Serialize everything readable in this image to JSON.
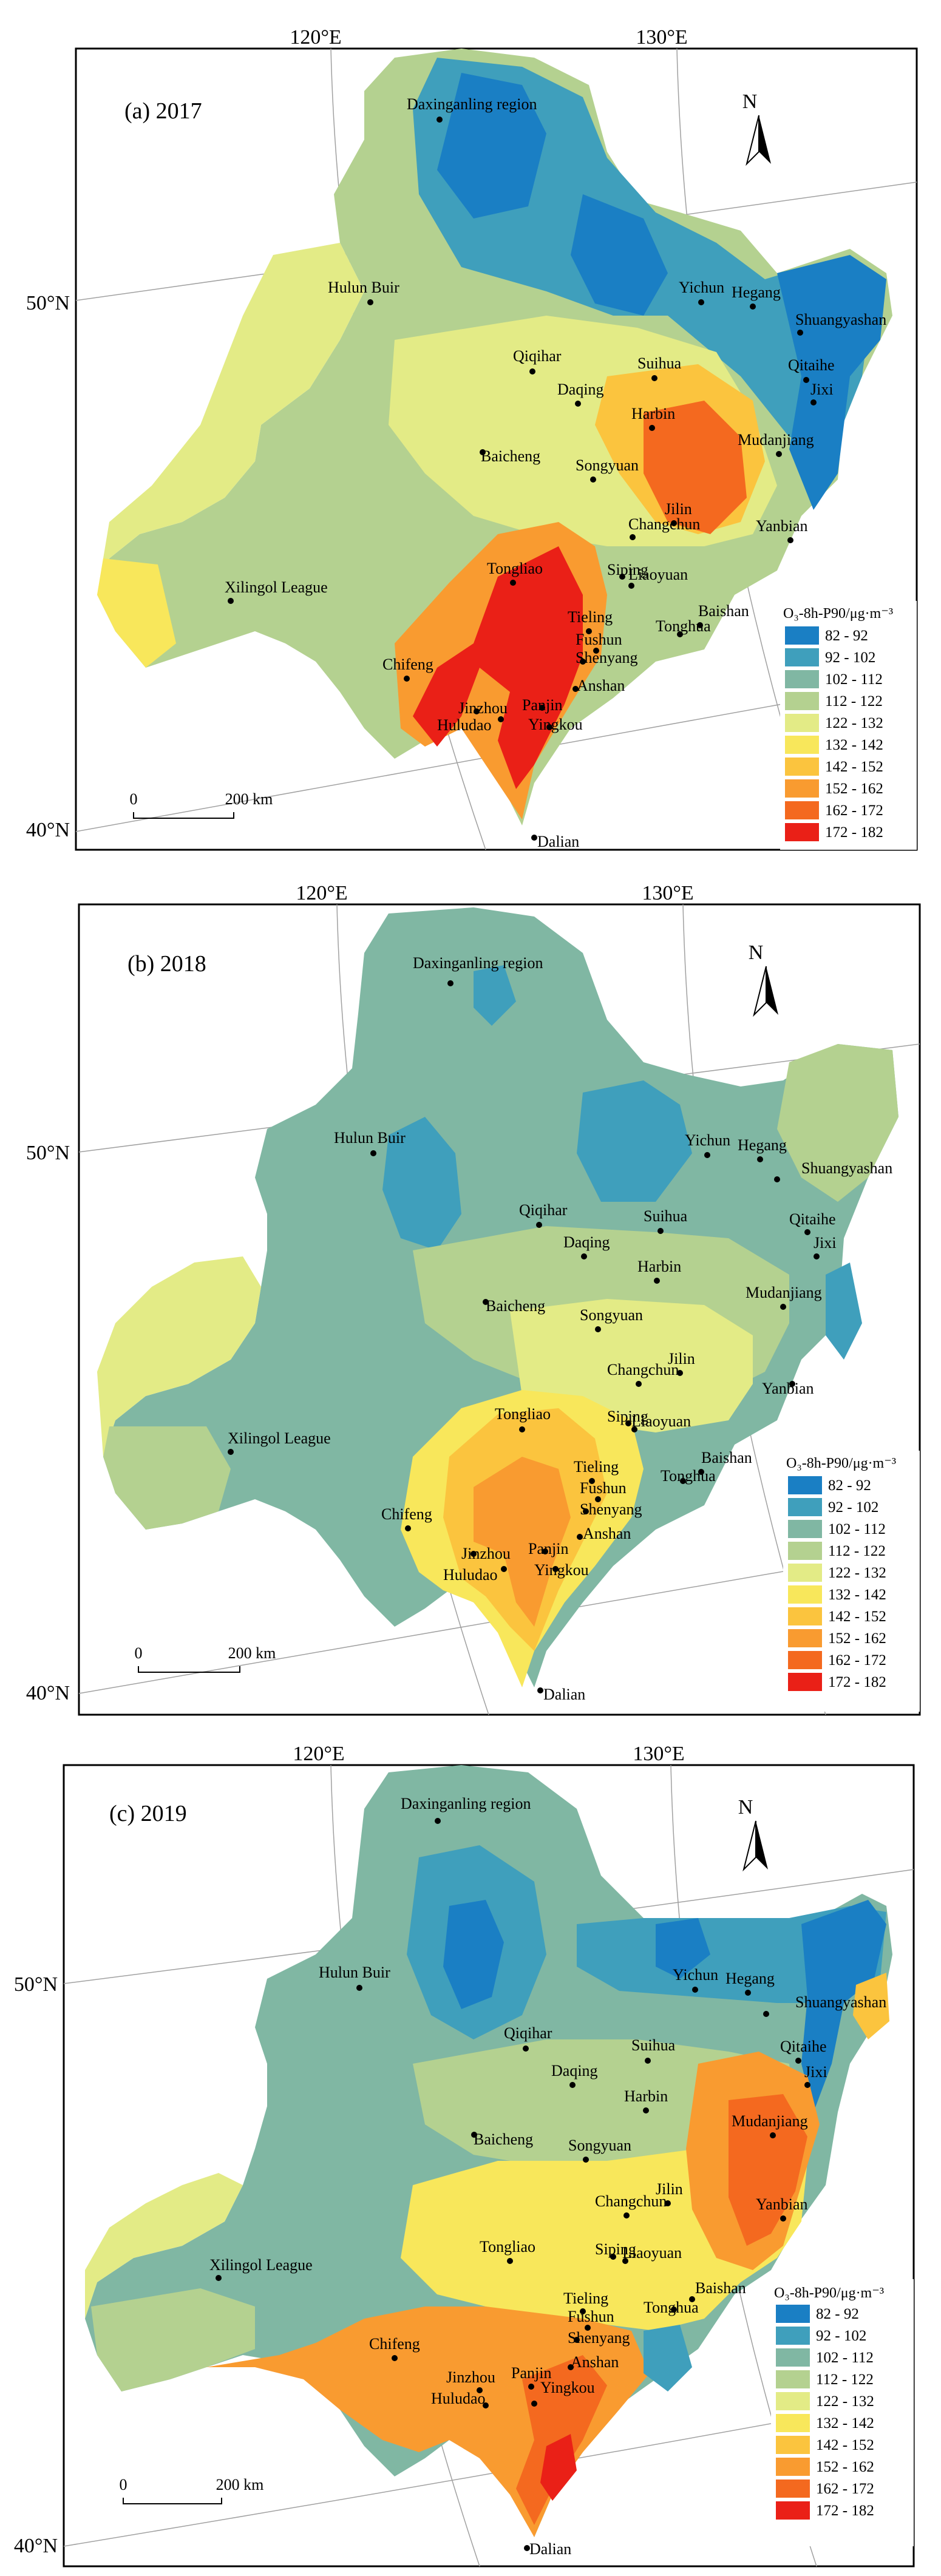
{
  "graticule": {
    "lon_labels": [
      "120°E",
      "130°E"
    ],
    "lat_labels": [
      "50°N",
      "40°N"
    ]
  },
  "legend": {
    "title": "O₃-8h-P90/μg·m⁻³",
    "classes": [
      {
        "label": "82 - 92",
        "color": "#1a7fc4"
      },
      {
        "label": "92 - 102",
        "color": "#3f9fbc"
      },
      {
        "label": "102 - 112",
        "color": "#80b7a3"
      },
      {
        "label": "112 - 122",
        "color": "#b4d190"
      },
      {
        "label": "122 - 132",
        "color": "#e3eb86"
      },
      {
        "label": "132 - 142",
        "color": "#f8e75b"
      },
      {
        "label": "142 - 152",
        "color": "#fbc43e"
      },
      {
        "label": "152 - 162",
        "color": "#f99b30"
      },
      {
        "label": "162 - 172",
        "color": "#f4691f"
      },
      {
        "label": "172 - 182",
        "color": "#ea2017"
      }
    ]
  },
  "scale_bar": {
    "start": "0",
    "end": "200 km"
  },
  "north_arrow": {
    "label": "N"
  },
  "panels": [
    {
      "title": "(a) 2017"
    },
    {
      "title": "(b) 2018"
    },
    {
      "title": "(c) 2019"
    }
  ],
  "cities": [
    "Daxinganling region",
    "Hulun Buir",
    "Yichun",
    "Hegang",
    "Shuangyashan",
    "Qiqihar",
    "Suihua",
    "Qitaihe",
    "Jixi",
    "Daqing",
    "Harbin",
    "Baicheng",
    "Songyuan",
    "Mudanjiang",
    "Jilin",
    "Changchun",
    "Yanbian",
    "Tongliao",
    "Siping",
    "Liaoyuan",
    "Xilingol League",
    "Baishan",
    "Tonghua",
    "Tieling",
    "Fushun",
    "Shenyang",
    "Chifeng",
    "Anshan",
    "Jinzhou",
    "Panjin",
    "Huludao",
    "Yingkou",
    "Dalian"
  ]
}
